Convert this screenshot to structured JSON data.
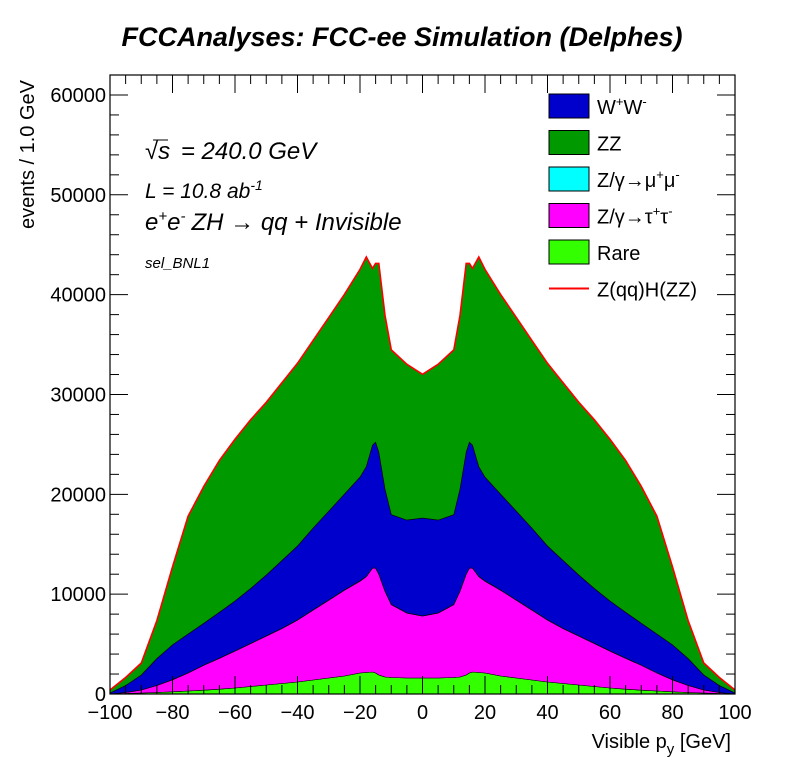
{
  "chart_data": {
    "type": "area",
    "title": "FCCAnalyses: FCC-ee Simulation (Delphes)",
    "xlabel": "Visible p_y [GeV]",
    "ylabel": "events / 1.0 GeV",
    "xlim": [
      -100,
      100
    ],
    "ylim": [
      0,
      62000
    ],
    "x_ticks": [
      -100,
      -80,
      -60,
      -40,
      -20,
      0,
      20,
      40,
      60,
      80,
      100
    ],
    "y_ticks": [
      0,
      10000,
      20000,
      30000,
      40000,
      50000,
      60000
    ],
    "grid": false,
    "legend_position": "top-right",
    "stacked": true,
    "annotations": {
      "sqrt_s": "= 240.0 GeV",
      "lumi": "L = 10.8 ab",
      "lumi_exp": "-1",
      "process": "ZH → qq + Invisible",
      "selection": "sel_BNL1"
    },
    "x": [
      -100,
      -95,
      -90,
      -85,
      -80,
      -75,
      -70,
      -65,
      -60,
      -55,
      -50,
      -45,
      -40,
      -35,
      -30,
      -25,
      -20,
      -18,
      -16,
      -15,
      -14,
      -12,
      -10,
      -5,
      0,
      5,
      10,
      12,
      14,
      15,
      16,
      18,
      20,
      25,
      30,
      35,
      40,
      45,
      50,
      55,
      60,
      65,
      70,
      75,
      80,
      85,
      90,
      95,
      100
    ],
    "series": [
      {
        "name": "Rare",
        "color": "#33ff00",
        "values": [
          0,
          50,
          100,
          150,
          220,
          300,
          380,
          480,
          600,
          750,
          900,
          1050,
          1200,
          1400,
          1600,
          1800,
          2100,
          2150,
          2200,
          2100,
          1900,
          1700,
          1650,
          1600,
          1600,
          1600,
          1650,
          1700,
          1900,
          2100,
          2200,
          2150,
          2100,
          1800,
          1600,
          1400,
          1200,
          1050,
          900,
          750,
          600,
          480,
          380,
          300,
          220,
          150,
          100,
          50,
          0
        ]
      },
      {
        "name": "Z/γ→τ⁺τ⁻",
        "color": "#ff00ff",
        "values": [
          0,
          100,
          300,
          700,
          1200,
          1800,
          2500,
          3100,
          3700,
          4300,
          4900,
          5500,
          6200,
          7000,
          7800,
          8600,
          9200,
          9600,
          10400,
          10500,
          10100,
          8600,
          7300,
          6500,
          6200,
          6500,
          7300,
          8600,
          10100,
          10500,
          10400,
          9600,
          9200,
          8600,
          7800,
          7000,
          6200,
          5500,
          4900,
          4300,
          3700,
          3100,
          2500,
          1800,
          1200,
          700,
          300,
          100,
          0
        ]
      },
      {
        "name": "Z/γ→μ⁺μ⁻",
        "color": "#00ffff",
        "values": [
          0,
          5,
          5,
          10,
          10,
          10,
          10,
          15,
          15,
          15,
          20,
          20,
          20,
          20,
          20,
          20,
          25,
          25,
          25,
          25,
          25,
          20,
          20,
          20,
          20,
          20,
          20,
          20,
          25,
          25,
          25,
          25,
          25,
          20,
          20,
          20,
          20,
          20,
          20,
          15,
          15,
          15,
          10,
          10,
          10,
          10,
          5,
          5,
          0
        ]
      },
      {
        "name": "W⁺W⁻",
        "color": "#0000cc",
        "values": [
          100,
          700,
          1500,
          2700,
          3500,
          3900,
          4200,
          4600,
          5000,
          5500,
          6100,
          6800,
          7400,
          8200,
          8900,
          9600,
          10400,
          11000,
          12300,
          12600,
          12200,
          10200,
          9000,
          9300,
          9800,
          9300,
          9000,
          10200,
          12200,
          12600,
          12300,
          11000,
          10400,
          9600,
          8900,
          8200,
          7400,
          6800,
          6100,
          5500,
          5000,
          4600,
          4200,
          3900,
          3500,
          2700,
          1500,
          700,
          100
        ]
      },
      {
        "name": "ZZ",
        "color": "#009900",
        "values": [
          300,
          800,
          1200,
          3800,
          7800,
          11800,
          13700,
          15200,
          16200,
          16900,
          17300,
          17800,
          18300,
          18800,
          19400,
          20000,
          20800,
          21000,
          17700,
          17900,
          18900,
          17400,
          16500,
          15600,
          14400,
          15600,
          16500,
          17400,
          18900,
          17900,
          17700,
          21000,
          20800,
          20000,
          19400,
          18800,
          18300,
          17800,
          17300,
          16900,
          16200,
          15200,
          13700,
          11800,
          7800,
          3800,
          1200,
          800,
          300
        ]
      }
    ],
    "signal": {
      "name": "Z(qq)H(ZZ)",
      "color": "#ff0000",
      "values": [
        0,
        0,
        0,
        0,
        0,
        0,
        0,
        0,
        0,
        0,
        0,
        0,
        0,
        0,
        0,
        0,
        0,
        0,
        0,
        0,
        0,
        0,
        0,
        0,
        0,
        0,
        0,
        0,
        0,
        0,
        0,
        0,
        0,
        0,
        0,
        0,
        0,
        0,
        0,
        0,
        0,
        0,
        0,
        0,
        0,
        0,
        0,
        0,
        0
      ]
    },
    "legend": [
      {
        "label": "W",
        "sup1": "+",
        "label2": "W",
        "sup2": "-",
        "color": "#0000cc",
        "kind": "box"
      },
      {
        "label": "ZZ",
        "color": "#009900",
        "kind": "box"
      },
      {
        "label": "Z/γ→μ",
        "sup1": "+",
        "label2": "μ",
        "sup2": "-",
        "color": "#00ffff",
        "kind": "box"
      },
      {
        "label": "Z/γ→τ",
        "sup1": "+",
        "label2": "τ",
        "sup2": "-",
        "color": "#ff00ff",
        "kind": "box"
      },
      {
        "label": "Rare",
        "color": "#33ff00",
        "kind": "box"
      },
      {
        "label": "Z(qq)H(ZZ)",
        "color": "#ff0000",
        "kind": "line"
      }
    ]
  }
}
